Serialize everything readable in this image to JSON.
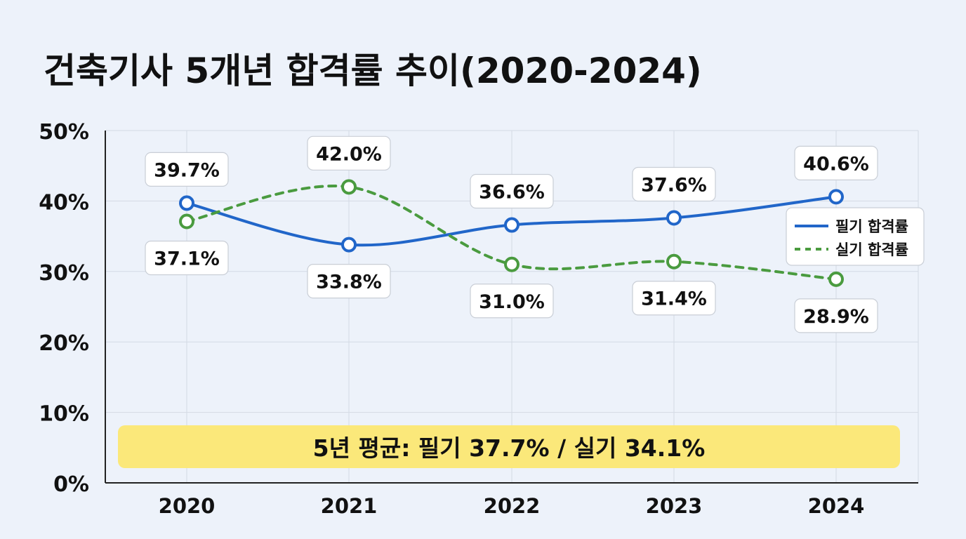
{
  "chart_data": {
    "type": "line",
    "title": "건축기사 5개년 합격률 추이(2020-2024)",
    "categories": [
      "2020",
      "2021",
      "2022",
      "2023",
      "2024"
    ],
    "ylim": [
      0,
      50
    ],
    "yticks": [
      "0%",
      "10%",
      "20%",
      "30%",
      "40%",
      "50%"
    ],
    "grid": true,
    "legend_position": "right",
    "series": [
      {
        "name": "필기 합격률",
        "values": [
          39.7,
          33.8,
          36.6,
          37.6,
          40.6
        ],
        "labels": [
          "39.7%",
          "33.8%",
          "36.6%",
          "37.6%",
          "40.6%"
        ],
        "color": "#2166c9",
        "style": "solid"
      },
      {
        "name": "실기 합격률",
        "values": [
          37.1,
          42.0,
          31.0,
          31.4,
          28.9
        ],
        "labels": [
          "37.1%",
          "42.0%",
          "31.0%",
          "31.4%",
          "28.9%"
        ],
        "color": "#4a9b3f",
        "style": "dashed"
      }
    ],
    "annotation": "5년 평균: 필기 37.7% / 실기 34.1%",
    "annotation_color": "#fbe87a"
  }
}
